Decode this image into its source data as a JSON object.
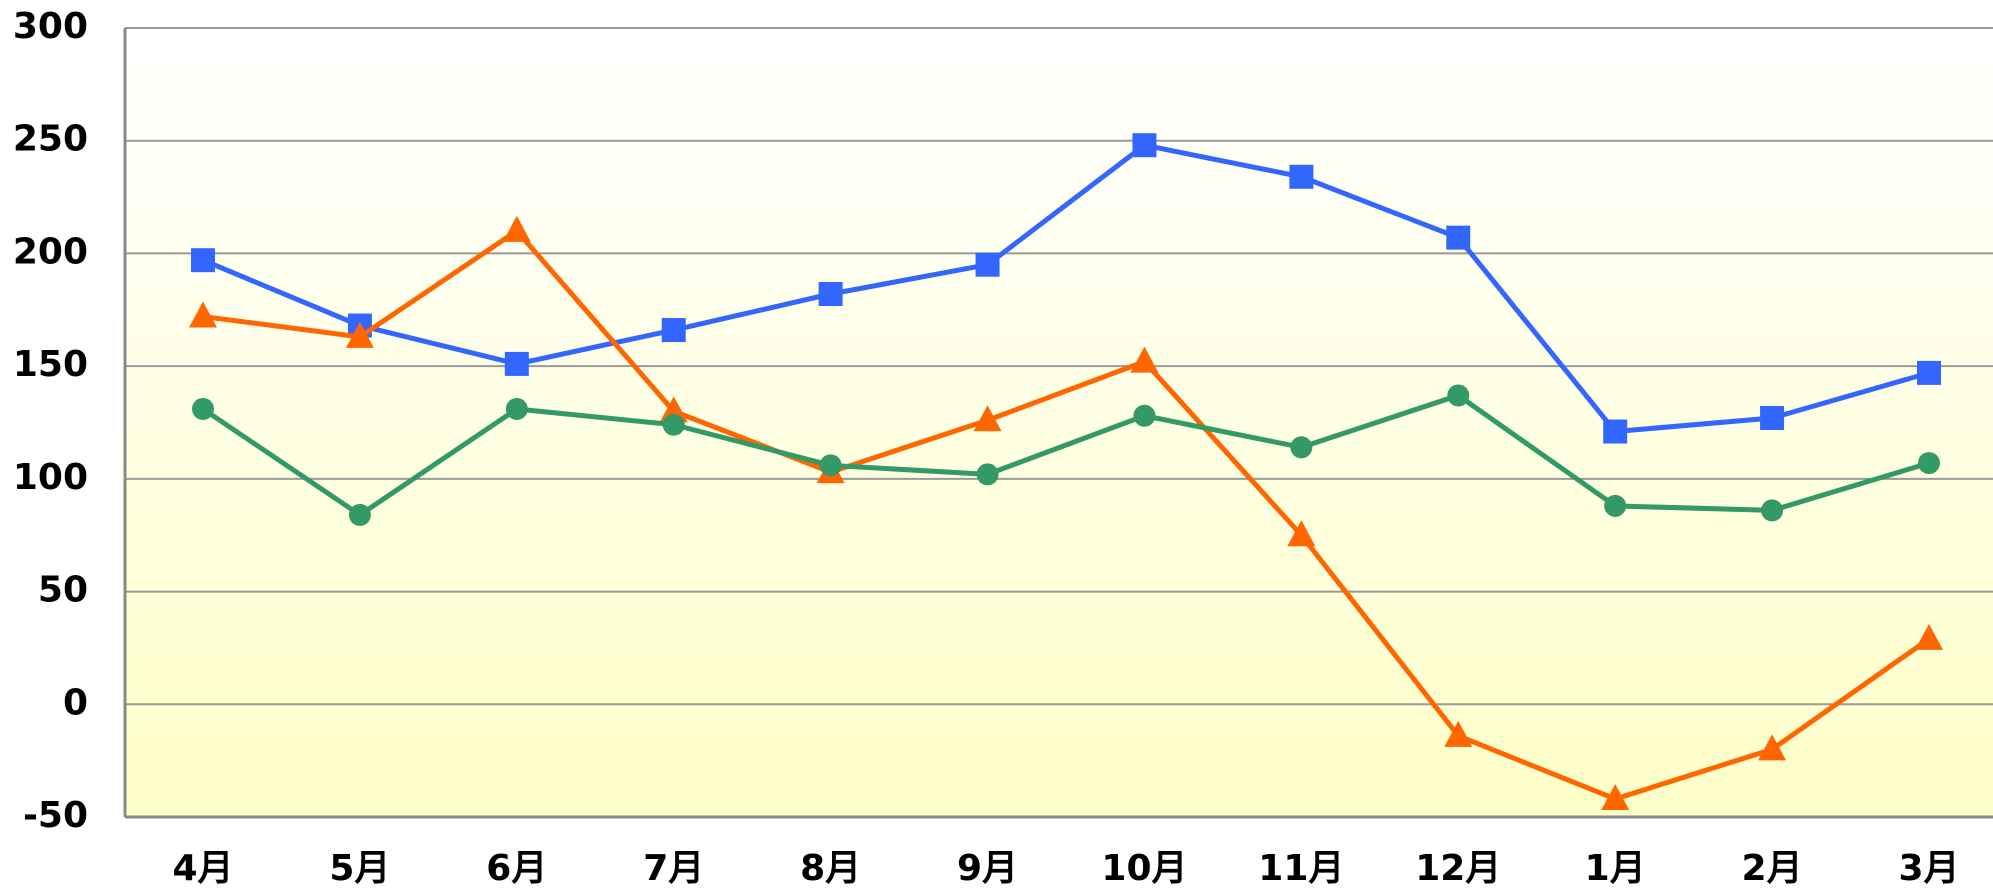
{
  "chart_data": {
    "type": "line",
    "categories": [
      "4月",
      "5月",
      "6月",
      "7月",
      "8月",
      "9月",
      "10月",
      "11月",
      "12月",
      "1月",
      "2月",
      "3月"
    ],
    "series": [
      {
        "color": "#3366ff",
        "marker": "square",
        "values": [
          197,
          168,
          151,
          166,
          182,
          195,
          248,
          234,
          207,
          121,
          127,
          147
        ]
      },
      {
        "color": "#ff6600",
        "marker": "triangle",
        "values": [
          172,
          163,
          210,
          130,
          103,
          126,
          152,
          75,
          -14,
          -42,
          -20,
          29
        ]
      },
      {
        "color": "#339966",
        "marker": "circle",
        "values": [
          131,
          84,
          131,
          124,
          106,
          102,
          128,
          114,
          137,
          88,
          86,
          107
        ]
      }
    ],
    "ylim": [
      -50,
      300
    ],
    "yticks": [
      -50,
      0,
      50,
      100,
      150,
      200,
      250,
      300
    ],
    "grid": true
  }
}
